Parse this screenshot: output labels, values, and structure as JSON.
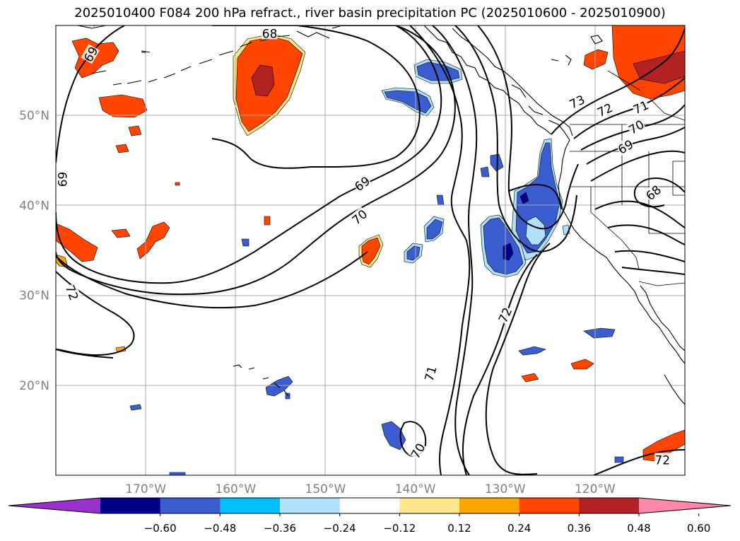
{
  "title": "2025010400 F084 200 hPa refract., river basin precipitation PC (2025010600 - 2025010900)",
  "map": {
    "lon_range": [
      -180,
      -110
    ],
    "lat_range": [
      10,
      60
    ],
    "lon_ticks": [
      {
        "lon": -170,
        "label": "170°W"
      },
      {
        "lon": -160,
        "label": "160°W"
      },
      {
        "lon": -150,
        "label": "150°W"
      },
      {
        "lon": -140,
        "label": "140°W"
      },
      {
        "lon": -130,
        "label": "130°W"
      },
      {
        "lon": -120,
        "label": "120°W"
      }
    ],
    "lat_ticks": [
      {
        "lat": 20,
        "label": "20°N"
      },
      {
        "lat": 30,
        "label": "30°N"
      },
      {
        "lat": 40,
        "label": "40°N"
      },
      {
        "lat": 50,
        "label": "50°N"
      }
    ],
    "gridlines": true,
    "tick_label_color": "#808080"
  },
  "contour_labels": [
    {
      "text": "68",
      "lon": -156.2,
      "lat": 59.1,
      "rot": 0
    },
    {
      "text": "69",
      "lon": -176.1,
      "lat": 56.8,
      "rot": -60
    },
    {
      "text": "69",
      "lon": -179.3,
      "lat": 42.9,
      "rot": 90
    },
    {
      "text": "72",
      "lon": -178.2,
      "lat": 30.3,
      "rot": 70
    },
    {
      "text": "69",
      "lon": -145.9,
      "lat": 42.4,
      "rot": -35
    },
    {
      "text": "70",
      "lon": -146.2,
      "lat": 38.7,
      "rot": -40
    },
    {
      "text": "72",
      "lon": -130.0,
      "lat": 27.8,
      "rot": -65
    },
    {
      "text": "71",
      "lon": -138.3,
      "lat": 21.3,
      "rot": -75
    },
    {
      "text": "70",
      "lon": -139.7,
      "lat": 12.7,
      "rot": -60
    },
    {
      "text": "73",
      "lon": -122.0,
      "lat": 51.5,
      "rot": -25
    },
    {
      "text": "72",
      "lon": -118.9,
      "lat": 50.6,
      "rot": -25
    },
    {
      "text": "71",
      "lon": -114.9,
      "lat": 50.9,
      "rot": -25
    },
    {
      "text": "70",
      "lon": -115.4,
      "lat": 48.7,
      "rot": -30
    },
    {
      "text": "69",
      "lon": -116.6,
      "lat": 46.5,
      "rot": -30
    },
    {
      "text": "68",
      "lon": -113.5,
      "lat": 41.4,
      "rot": -40
    },
    {
      "text": "72",
      "lon": -112.5,
      "lat": 11.7,
      "rot": 0
    }
  ],
  "colorbar": {
    "colors": [
      "#9932cc",
      "#00008b",
      "#3a5ecf",
      "#00bfff",
      "#b0e0fa",
      "#ffffff",
      "#ffe68c",
      "#ffa500",
      "#ff4500",
      "#b22222",
      "#ff88aa"
    ],
    "tick_labels": [
      "−0.60",
      "−0.48",
      "−0.36",
      "−0.24",
      "−0.12",
      "0.12",
      "0.24",
      "0.36",
      "0.48",
      "0.60"
    ]
  },
  "colors": {
    "pos_light": "#ffe68c",
    "pos_orange": "#ffa500",
    "pos_red": "#ff4500",
    "pos_dark": "#b22222",
    "neg_light": "#b0e0fa",
    "neg_sky": "#00bfff",
    "neg_blue": "#3a5ecf",
    "neg_navy": "#00008b"
  }
}
